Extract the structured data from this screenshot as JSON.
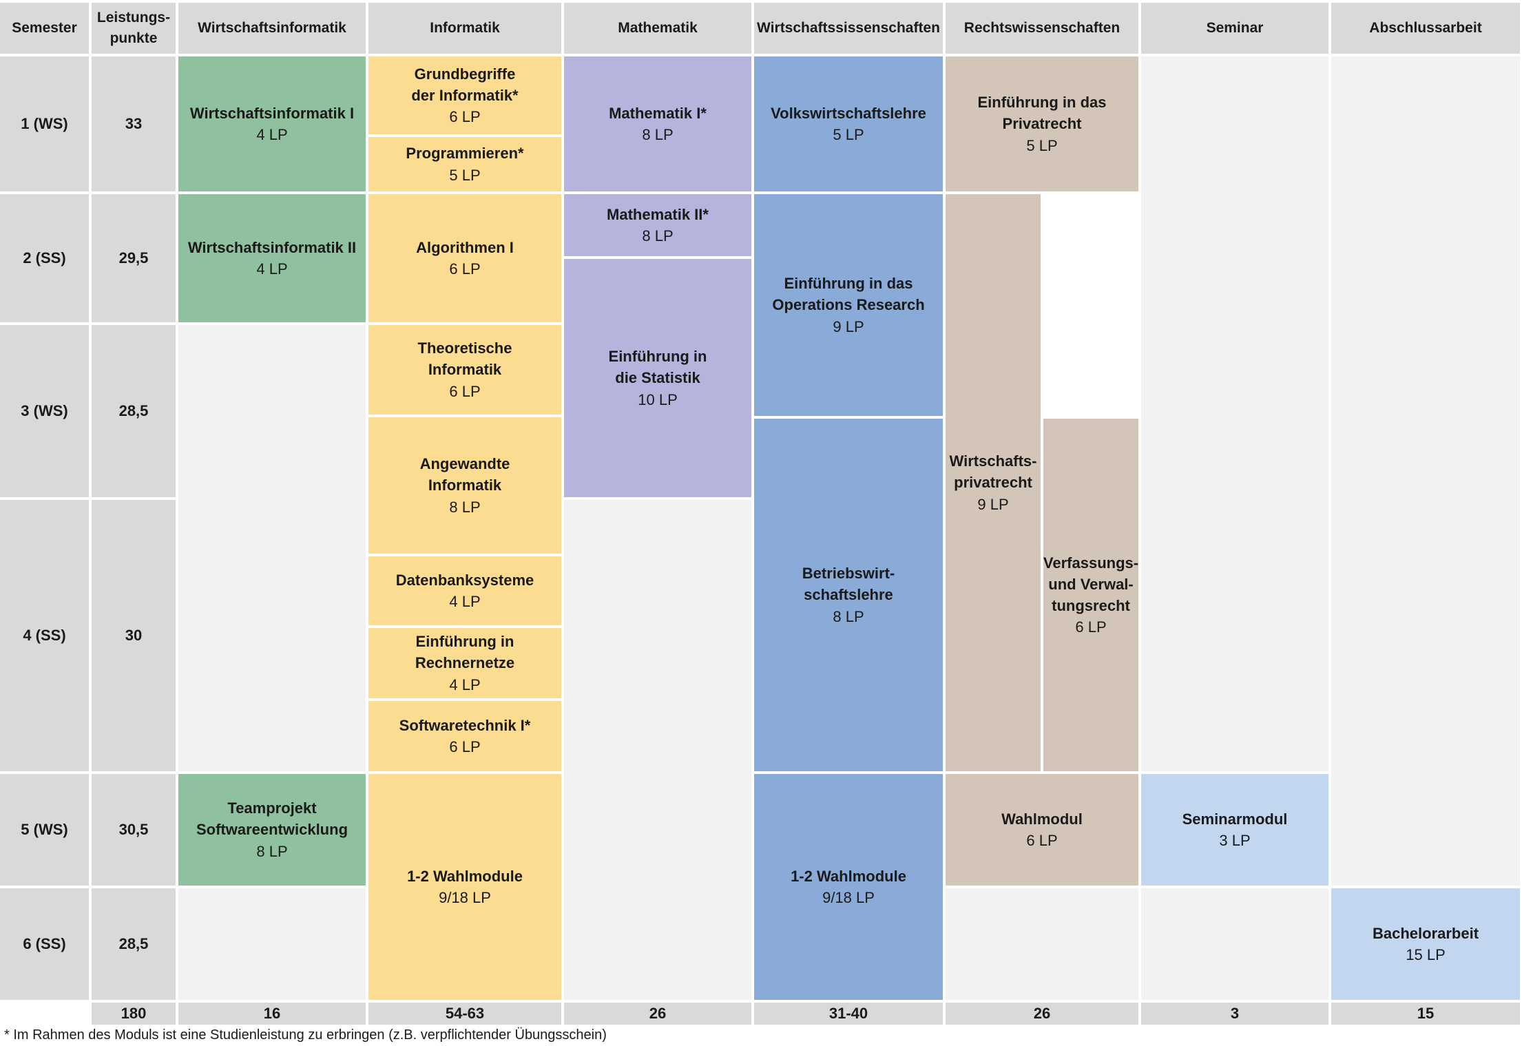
{
  "headers": {
    "semester": "Semester",
    "leistungspunkte": "Leistungs-\npunkte",
    "wirtschaftsinformatik": "Wirtschaftsinformatik",
    "informatik": "Informatik",
    "mathematik": "Mathematik",
    "wirtschaftswissenschaften": "Wirtschaftssissenschaften",
    "rechtswissenschaften": "Rechtswissenschaften",
    "seminar": "Seminar",
    "abschlussarbeit": "Abschlussarbeit"
  },
  "semesters": [
    {
      "label": "1 (WS)",
      "lp": "33"
    },
    {
      "label": "2 (SS)",
      "lp": "29,5"
    },
    {
      "label": "3 (WS)",
      "lp": "28,5"
    },
    {
      "label": "4 (SS)",
      "lp": "30"
    },
    {
      "label": "5 (WS)",
      "lp": "30,5"
    },
    {
      "label": "6 (SS)",
      "lp": "28,5"
    }
  ],
  "modules": {
    "wi1": {
      "name": "Wirtschaftsinformatik I",
      "lp": "4 LP"
    },
    "wi2": {
      "name": "Wirtschaftsinformatik II",
      "lp": "4 LP"
    },
    "teamprojekt": {
      "name": "Teamprojekt\nSoftwareentwicklung",
      "lp": "8 LP"
    },
    "grundbegriffe": {
      "name": "Grundbegriffe\nder Informatik*",
      "lp": "6 LP"
    },
    "programmieren": {
      "name": "Programmieren*",
      "lp": "5 LP"
    },
    "algorithmen": {
      "name": "Algorithmen I",
      "lp": "6 LP"
    },
    "theoretische": {
      "name": "Theoretische\nInformatik",
      "lp": "6 LP"
    },
    "angewandte": {
      "name": "Angewandte\nInformatik",
      "lp": "8 LP"
    },
    "datenbank": {
      "name": "Datenbanksysteme",
      "lp": "4 LP"
    },
    "rechnernetze": {
      "name": "Einführung in\nRechnernetze",
      "lp": "4 LP"
    },
    "softwaretechnik": {
      "name": "Softwaretechnik I*",
      "lp": "6 LP"
    },
    "inf_wahl": {
      "name": "1-2 Wahlmodule",
      "lp": "9/18 LP"
    },
    "mathe1": {
      "name": "Mathematik I*",
      "lp": "8 LP"
    },
    "mathe2": {
      "name": "Mathematik II*",
      "lp": "8 LP"
    },
    "statistik": {
      "name": "Einführung in\ndie Statistik",
      "lp": "10 LP"
    },
    "vwl": {
      "name": "Volkswirtschaftslehre",
      "lp": "5 LP"
    },
    "or": {
      "name": "Einführung in das\nOperations Research",
      "lp": "9 LP"
    },
    "bwl": {
      "name": "Betriebswirt-\nschaftslehre",
      "lp": "8 LP"
    },
    "ww_wahl": {
      "name": "1-2 Wahlmodule",
      "lp": "9/18 LP"
    },
    "privatrecht": {
      "name": "Einführung in das\nPrivatrecht",
      "lp": "5 LP"
    },
    "wirtschaftsprivatrecht": {
      "name": "Wirtschafts-\nprivatrecht",
      "lp": "9 LP"
    },
    "verfassung": {
      "name": "Verfassungs-\nund Verwal-\ntungsrecht",
      "lp": "6 LP"
    },
    "rw_wahl": {
      "name": "Wahlmodul",
      "lp": "6 LP"
    },
    "seminar": {
      "name": "Seminarmodul",
      "lp": "3 LP"
    },
    "bachelor": {
      "name": "Bachelorarbeit",
      "lp": "15 LP"
    }
  },
  "totals": {
    "lp": "180",
    "wirtschaftsinformatik": "16",
    "informatik": "54-63",
    "mathematik": "26",
    "wirtschaftswissenschaften": "31-40",
    "rechtswissenschaften": "26",
    "seminar": "3",
    "abschlussarbeit": "15"
  },
  "footnote": "* Im Rahmen des Moduls ist eine Studienleistung zu erbringen (z.B. verpflichtender Übungsschein)",
  "colors": {
    "wirtschaftsinformatik": "#8fc19f",
    "informatik": "#fcdc90",
    "mathematik": "#b4b4dc",
    "wirtschaftswissenschaften": "#8aaad8",
    "rechtswissenschaften": "#d3c6b8",
    "seminar": "#c2d7ef",
    "abschlussarbeit": "#c2d7ef",
    "header": "#d9d9d9",
    "empty": "#f2f2f2"
  }
}
